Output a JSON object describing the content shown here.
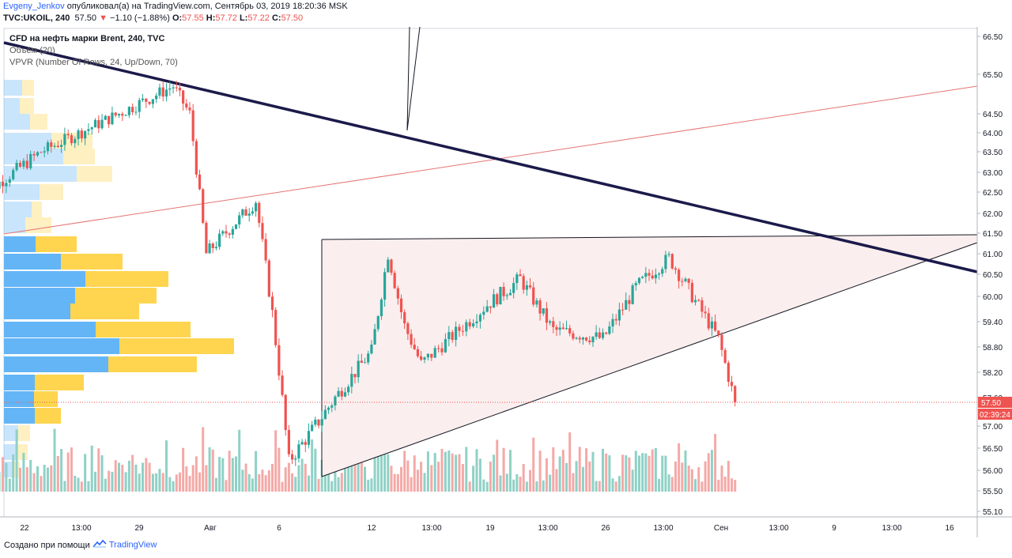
{
  "header": {
    "author": "Evgeny_Jenkov",
    "published": "опубликовал(а) на TradingView.com, Сентябрь 03, 2019 18:20:36 MSK",
    "symbol": "TVC:UKOIL, 240",
    "last": "57.50",
    "change_arrow": "▼",
    "change": "−1.10 (−1.88%)",
    "o_label": "O:",
    "o_value": "57.55",
    "h_label": "H:",
    "h_value": "57.72",
    "l_label": "L:",
    "l_value": "57.22",
    "c_label": "C:",
    "c_value": "57.50"
  },
  "legend": {
    "series": "CFD на нефть марки Brent, 240, TVC",
    "volume": "Объём (20)",
    "vpvr": "VPVR (Number Of Rows, 24, Up/Down, 70)"
  },
  "footer": {
    "created_with": "Создано при помощи",
    "brand": "TradingView"
  },
  "price_marker": {
    "value": "57.50",
    "countdown": "02:39:24"
  },
  "colors": {
    "up": "#26a69a",
    "down": "#ef5350",
    "up_volume": "#8fd1c6",
    "down_volume": "#f4a9a7",
    "vp_up": "#64b5f6",
    "vp_down": "#ffd54f",
    "trendline": "#1b1a4a",
    "triangle_fill": "#fbeeee"
  },
  "chart_data": {
    "type": "candlestick",
    "title": "CFD на нефть марки Brent, 240, TVC",
    "ylim": [
      55.1,
      66.5
    ],
    "y_ticks": [
      "66.50",
      "65.50",
      "64.50",
      "64.00",
      "63.50",
      "63.00",
      "62.50",
      "62.00",
      "61.50",
      "61.00",
      "60.50",
      "60.00",
      "59.40",
      "58.80",
      "58.20",
      "57.60",
      "57.00",
      "56.50",
      "56.00",
      "55.50",
      "55.10"
    ],
    "x_ticks": [
      "22",
      "13:00",
      "29",
      "Авг",
      "6",
      "12",
      "13:00",
      "19",
      "13:00",
      "26",
      "13:00",
      "Сен",
      "13:00",
      "9",
      "13:00",
      "16"
    ],
    "key_points": [
      {
        "x": "Jul 19",
        "price": 62.3
      },
      {
        "x": "Jul 23",
        "price": 63.5
      },
      {
        "x": "Jul 31",
        "price": 65.2
      },
      {
        "x": "Aug 1",
        "price": 64.5
      },
      {
        "x": "Aug 2",
        "price": 61.0
      },
      {
        "x": "Aug 5",
        "price": 62.3
      },
      {
        "x": "Aug 6",
        "price": 59.6
      },
      {
        "x": "Aug 7",
        "price": 56.2
      },
      {
        "x": "Aug 9",
        "price": 57.2
      },
      {
        "x": "Aug 12",
        "price": 58.7
      },
      {
        "x": "Aug 13",
        "price": 61.0
      },
      {
        "x": "Aug 14",
        "price": 59.3
      },
      {
        "x": "Aug 15",
        "price": 58.4
      },
      {
        "x": "Aug 19",
        "price": 59.8
      },
      {
        "x": "Aug 21",
        "price": 60.4
      },
      {
        "x": "Aug 23",
        "price": 59.2
      },
      {
        "x": "Aug 26",
        "price": 59.0
      },
      {
        "x": "Aug 28",
        "price": 60.2
      },
      {
        "x": "Aug 30",
        "price": 60.9
      },
      {
        "x": "Sep 2",
        "price": 59.0
      },
      {
        "x": "Sep 3",
        "price": 57.5
      }
    ],
    "last_price": 57.5
  }
}
